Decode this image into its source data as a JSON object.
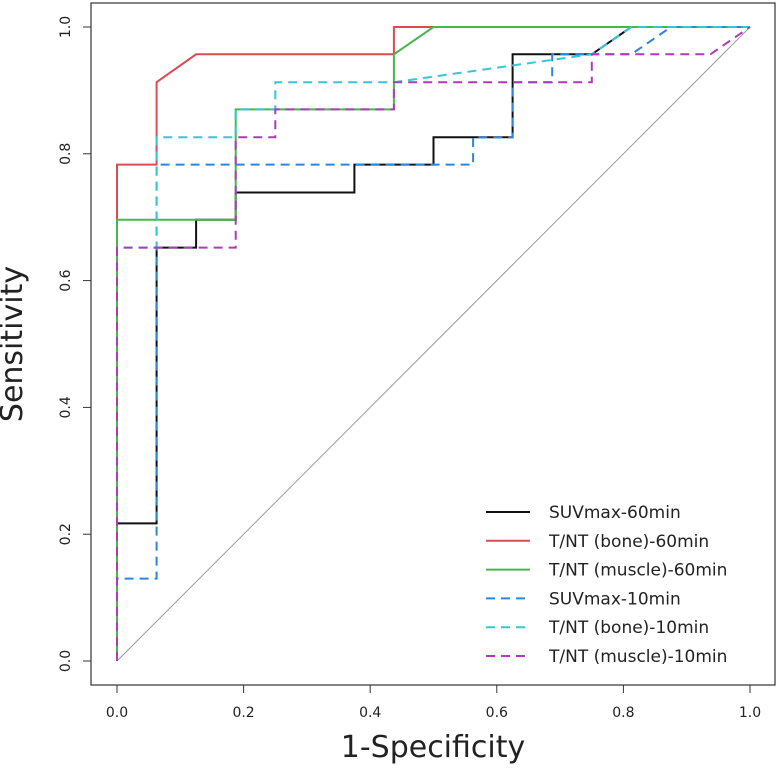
{
  "chart_data": {
    "type": "line",
    "title": "",
    "xlabel": "1-Specificity",
    "ylabel": "Sensitivity",
    "xlim": [
      0,
      1
    ],
    "ylim": [
      0,
      1
    ],
    "xticks": [
      "0.0",
      "0.2",
      "0.4",
      "0.6",
      "0.8",
      "1.0"
    ],
    "yticks": [
      "0.0",
      "0.2",
      "0.4",
      "0.6",
      "0.8",
      "1.0"
    ],
    "grid": false,
    "legend_position": "bottom-right",
    "reference_line": {
      "name": "chance diagonal",
      "x": [
        0,
        1
      ],
      "y": [
        0,
        1
      ],
      "color": "#9a9a9a"
    },
    "series": [
      {
        "name": "SUVmax-60min",
        "color": "#111111",
        "dash": "solid",
        "x": [
          0,
          0,
          0.0625,
          0.0625,
          0.125,
          0.125,
          0.1875,
          0.1875,
          0.375,
          0.375,
          0.5,
          0.5,
          0.625,
          0.625,
          0.75,
          0.8125,
          1
        ],
        "y": [
          0,
          0.217,
          0.217,
          0.652,
          0.652,
          0.696,
          0.696,
          0.739,
          0.739,
          0.783,
          0.783,
          0.826,
          0.826,
          0.957,
          0.957,
          1,
          1
        ]
      },
      {
        "name": "T/NT (bone)-60min",
        "color": "#dd4a55",
        "dash": "solid",
        "x": [
          0,
          0,
          0.0625,
          0.0625,
          0.125,
          0.4375,
          0.4375,
          1
        ],
        "y": [
          0,
          0.783,
          0.783,
          0.913,
          0.957,
          0.957,
          1,
          1
        ]
      },
      {
        "name": "T/NT (muscle)-60min",
        "color": "#46b84a",
        "dash": "solid",
        "x": [
          0,
          0,
          0.1875,
          0.1875,
          0.4375,
          0.4375,
          0.5,
          1
        ],
        "y": [
          0,
          0.696,
          0.696,
          0.87,
          0.87,
          0.957,
          1,
          1
        ]
      },
      {
        "name": "SUVmax-10min",
        "color": "#2b86de",
        "dash": "dashed",
        "x": [
          0,
          0,
          0.0625,
          0.0625,
          0.5625,
          0.5625,
          0.625,
          0.625,
          0.6875,
          0.6875,
          0.8125,
          0.875,
          1
        ],
        "y": [
          0,
          0.13,
          0.13,
          0.783,
          0.783,
          0.826,
          0.826,
          0.913,
          0.913,
          0.957,
          0.957,
          1,
          1
        ]
      },
      {
        "name": "T/NT (bone)-10min",
        "color": "#33c8d8",
        "dash": "dashed",
        "x": [
          0,
          0,
          0.0625,
          0.0625,
          0.1875,
          0.1875,
          0.25,
          0.25,
          0.4375,
          0.4375,
          0.75,
          0.8125,
          1
        ],
        "y": [
          0,
          0.652,
          0.652,
          0.826,
          0.826,
          0.87,
          0.87,
          0.913,
          0.913,
          0.913,
          0.957,
          1,
          1
        ]
      },
      {
        "name": "T/NT (muscle)-10min",
        "color": "#b03ab8",
        "dash": "dashed",
        "x": [
          0,
          0,
          0.1875,
          0.1875,
          0.25,
          0.25,
          0.4375,
          0.4375,
          0.75,
          0.75,
          0.9375,
          1
        ],
        "y": [
          0,
          0.652,
          0.652,
          0.826,
          0.826,
          0.87,
          0.87,
          0.913,
          0.913,
          0.957,
          0.957,
          1
        ]
      }
    ]
  }
}
